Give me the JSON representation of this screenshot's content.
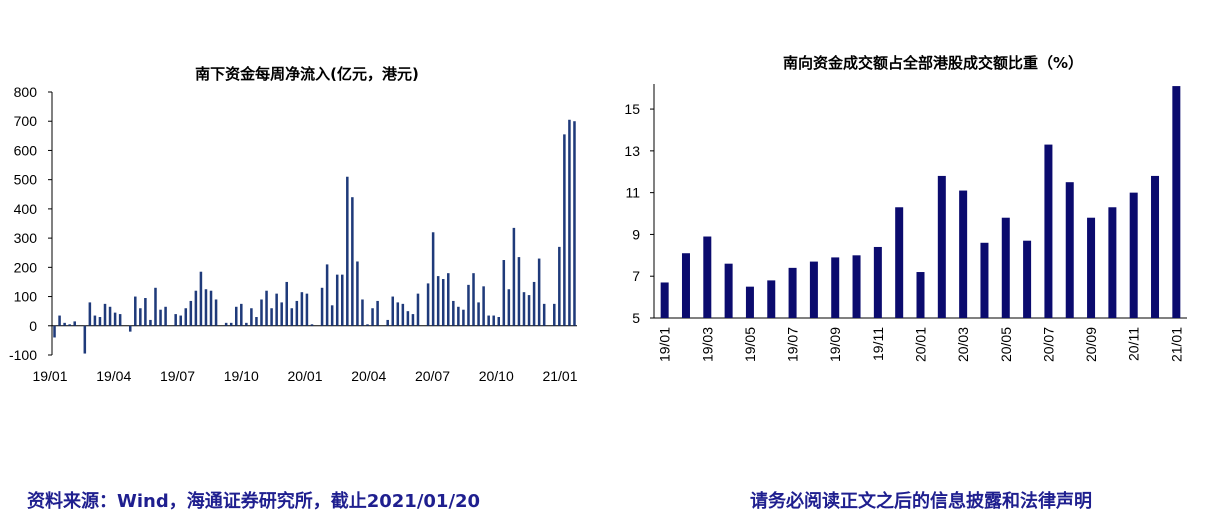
{
  "chart_data": [
    {
      "type": "bar",
      "title": "南下资金每周净流入(亿元，港元)",
      "yticks": [
        -100,
        0,
        100,
        200,
        300,
        400,
        500,
        600,
        700,
        800
      ],
      "ylim": [
        -100,
        800
      ],
      "xtick_labels": [
        "19/01",
        "19/04",
        "19/07",
        "19/10",
        "20/01",
        "20/04",
        "20/07",
        "20/10",
        "21/01"
      ],
      "values": [
        -40,
        35,
        10,
        5,
        15,
        0,
        -95,
        80,
        35,
        30,
        75,
        65,
        45,
        40,
        0,
        -20,
        100,
        60,
        95,
        20,
        130,
        55,
        65,
        0,
        40,
        35,
        60,
        85,
        120,
        185,
        125,
        120,
        90,
        0,
        10,
        10,
        65,
        75,
        10,
        60,
        30,
        90,
        120,
        60,
        110,
        80,
        150,
        60,
        85,
        115,
        110,
        5,
        0,
        130,
        210,
        70,
        175,
        175,
        510,
        440,
        220,
        90,
        5,
        60,
        85,
        0,
        20,
        100,
        80,
        75,
        50,
        40,
        110,
        0,
        145,
        320,
        170,
        160,
        180,
        85,
        65,
        55,
        140,
        180,
        80,
        135,
        35,
        35,
        30,
        225,
        125,
        335,
        235,
        115,
        105,
        150,
        230,
        75,
        0,
        75,
        270,
        655,
        705,
        700
      ],
      "bar_color": "#1f3a7a",
      "grid": false
    },
    {
      "type": "bar",
      "title": "南向资金成交额占全部港股成交额比重（%）",
      "yticks": [
        5,
        7,
        9,
        11,
        13,
        15
      ],
      "ylim": [
        5,
        16.2
      ],
      "categories": [
        "19/01",
        "19/02",
        "19/03",
        "19/04",
        "19/05",
        "19/06",
        "19/07",
        "19/08",
        "19/09",
        "19/10",
        "19/11",
        "19/12",
        "20/01",
        "20/02",
        "20/03",
        "20/04",
        "20/05",
        "20/06",
        "20/07",
        "20/08",
        "20/09",
        "20/10",
        "20/11",
        "20/12",
        "21/01"
      ],
      "xtick_labels": [
        "19/01",
        "19/03",
        "19/05",
        "19/07",
        "19/09",
        "19/11",
        "20/01",
        "20/03",
        "20/05",
        "20/07",
        "20/09",
        "20/11",
        "21/01"
      ],
      "values": [
        6.7,
        8.1,
        8.9,
        7.6,
        6.5,
        6.8,
        7.4,
        7.7,
        7.9,
        8.0,
        8.4,
        10.3,
        7.2,
        11.8,
        11.1,
        8.6,
        9.8,
        8.7,
        13.3,
        11.5,
        9.8,
        10.3,
        11.0,
        11.8,
        16.1
      ],
      "bar_color": "#0b0b6e",
      "grid": false
    }
  ],
  "footer": {
    "source": "资料来源：Wind，海通证券研究所，截止2021/01/20",
    "disclaimer": "请务必阅读正文之后的信息披露和法律声明"
  }
}
